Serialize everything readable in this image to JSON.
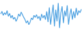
{
  "chart_data": {
    "type": "line",
    "color": "#4a9fe0",
    "tick_labels": false,
    "grid": false,
    "ylim": [
      15,
      100
    ],
    "values": [
      62,
      70,
      58,
      66,
      60,
      72,
      55,
      64,
      50,
      58,
      46,
      52,
      40,
      48,
      62,
      55,
      68,
      60,
      52,
      45,
      35,
      42,
      30,
      38,
      50,
      45,
      58,
      52,
      60,
      48,
      55,
      42,
      62,
      50,
      58,
      45,
      70,
      38,
      82,
      30,
      60,
      90,
      25,
      75,
      40,
      95,
      20,
      65,
      85,
      35,
      72,
      55,
      88,
      30,
      60,
      78,
      45,
      70,
      50,
      80,
      58,
      72,
      66,
      76
    ]
  }
}
